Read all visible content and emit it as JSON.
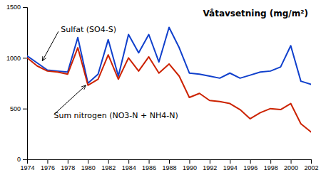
{
  "chart_data": {
    "type": "line",
    "title": "Våtavsetning (mg/m²)",
    "x": [
      1974,
      1975,
      1976,
      1977,
      1978,
      1979,
      1980,
      1981,
      1982,
      1983,
      1984,
      1985,
      1986,
      1987,
      1988,
      1989,
      1990,
      1991,
      1992,
      1993,
      1994,
      1995,
      1996,
      1997,
      1998,
      1999,
      2000,
      2001,
      2002
    ],
    "series": [
      {
        "name": "Sulfat (SO4-S)",
        "color": "#1040cc",
        "values": [
          1020,
          950,
          880,
          870,
          860,
          1200,
          750,
          840,
          1180,
          820,
          1230,
          1050,
          1230,
          960,
          1300,
          1100,
          850,
          840,
          820,
          800,
          850,
          800,
          830,
          860,
          870,
          910,
          1120,
          770,
          740
        ]
      },
      {
        "name": "Sum nitrogen (NO3-N + NH4-N)",
        "color": "#cc2200",
        "values": [
          1000,
          920,
          870,
          860,
          840,
          1100,
          730,
          790,
          1030,
          790,
          1000,
          870,
          1010,
          850,
          940,
          820,
          610,
          650,
          580,
          570,
          550,
          490,
          400,
          460,
          500,
          490,
          550,
          350,
          270
        ]
      }
    ],
    "annotations": [
      {
        "text": "Sulfat (SO4-S)",
        "x": 1975.5,
        "y": 970
      },
      {
        "text": "Sum nitrogen (NO3-N + NH4-N)",
        "x": 1979.8,
        "y": 730
      }
    ],
    "xlim": [
      1974,
      2002
    ],
    "xticks": [
      1974,
      1976,
      1978,
      1980,
      1982,
      1984,
      1986,
      1988,
      1990,
      1992,
      1994,
      1996,
      1998,
      2000,
      2002
    ],
    "ylim": [
      0,
      1500
    ],
    "yticks": [
      0,
      500,
      1000,
      1500
    ],
    "grid": false,
    "legend": false
  }
}
